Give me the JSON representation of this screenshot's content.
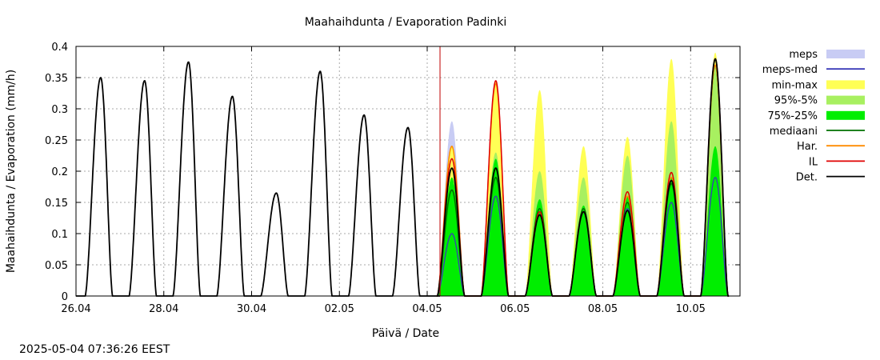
{
  "chart_data": {
    "type": "area",
    "title": "Maahaihdunta / Evaporation  Padinki",
    "xlabel": "Päivä / Date",
    "ylabel": "Maahaihdunta / Evaporation (mm/h)",
    "xlim": [
      "2025-04-26 00:00",
      "2025-05-11 03:00"
    ],
    "ylim": [
      0,
      0.4
    ],
    "x_ticks": [
      "26.04",
      "28.04",
      "30.04",
      "02.05",
      "04.05",
      "06.05",
      "08.05",
      "10.05"
    ],
    "y_ticks": [
      "0",
      "0.05",
      "0.1",
      "0.15",
      "0.2",
      "0.25",
      "0.3",
      "0.35",
      "0.4"
    ],
    "grid": true,
    "legend_position": "right",
    "analysis_time": "2025-05-04 07:00",
    "legend": [
      {
        "name": "meps",
        "kind": "band",
        "color": "#c8ccf4"
      },
      {
        "name": "meps-med",
        "kind": "line",
        "color": "#3a3ab8"
      },
      {
        "name": "min-max",
        "kind": "band",
        "color": "#ffff55"
      },
      {
        "name": "95%-5%",
        "kind": "band",
        "color": "#a8f060"
      },
      {
        "name": "75%-25%",
        "kind": "band",
        "color": "#00ee00"
      },
      {
        "name": "mediaani",
        "kind": "line",
        "color": "#007000"
      },
      {
        "name": "Har.",
        "kind": "line",
        "color": "#ff8c00"
      },
      {
        "name": "IL",
        "kind": "line",
        "color": "#e00000"
      },
      {
        "name": "Det.",
        "kind": "line",
        "color": "#000000"
      }
    ],
    "observed_daily_peaks": [
      {
        "date": "2025-04-26",
        "value": 0.35
      },
      {
        "date": "2025-04-27",
        "value": 0.345
      },
      {
        "date": "2025-04-28",
        "value": 0.375
      },
      {
        "date": "2025-04-29",
        "value": 0.32
      },
      {
        "date": "2025-04-30",
        "value": 0.165
      },
      {
        "date": "2025-05-01",
        "value": 0.36
      },
      {
        "date": "2025-05-02",
        "value": 0.29
      },
      {
        "date": "2025-05-03",
        "value": 0.27
      }
    ],
    "forecast_daily_peaks": [
      {
        "date": "2025-05-04",
        "meps": 0.28,
        "min_max": 0.24,
        "p95_5": 0.19,
        "p75_25": 0.19,
        "mediaani": 0.17,
        "meps_med": 0.1,
        "har": 0.24,
        "il": 0.22,
        "det": 0.205
      },
      {
        "date": "2025-05-05",
        "meps": 0.32,
        "min_max": 0.345,
        "p95_5": 0.23,
        "p75_25": 0.22,
        "mediaani": 0.19,
        "meps_med": 0.16,
        "har": 0.34,
        "il": 0.345,
        "det": 0.205
      },
      {
        "date": "2025-05-06",
        "meps": 0.32,
        "min_max": 0.33,
        "p95_5": 0.2,
        "p75_25": 0.155,
        "mediaani": 0.14,
        "meps_med": 0.13,
        "har": 0.13,
        "il": 0.135,
        "det": 0.13
      },
      {
        "date": "2025-05-07",
        "meps": 0.2,
        "min_max": 0.24,
        "p95_5": 0.19,
        "p75_25": 0.145,
        "mediaani": 0.14,
        "meps_med": 0.135,
        "har": 0.135,
        "il": 0.135,
        "det": 0.135
      },
      {
        "date": "2025-05-08",
        "meps": 0.22,
        "min_max": 0.255,
        "p95_5": 0.225,
        "p75_25": 0.16,
        "mediaani": 0.15,
        "meps_med": 0.14,
        "har": 0.16,
        "il": 0.167,
        "det": 0.137
      },
      {
        "date": "2025-05-09",
        "meps": 0.3,
        "min_max": 0.38,
        "p95_5": 0.28,
        "p75_25": 0.19,
        "mediaani": 0.18,
        "meps_med": 0.15,
        "har": 0.19,
        "il": 0.198,
        "det": 0.185
      },
      {
        "date": "2025-05-10",
        "meps": 0.38,
        "min_max": 0.39,
        "p95_5": 0.37,
        "p75_25": 0.24,
        "mediaani": 0.37,
        "meps_med": 0.19,
        "har": 0.37,
        "il": 0.38,
        "det": 0.38
      }
    ]
  },
  "footer": {
    "timestamp": "2025-05-04 07:36:26 EEST"
  }
}
